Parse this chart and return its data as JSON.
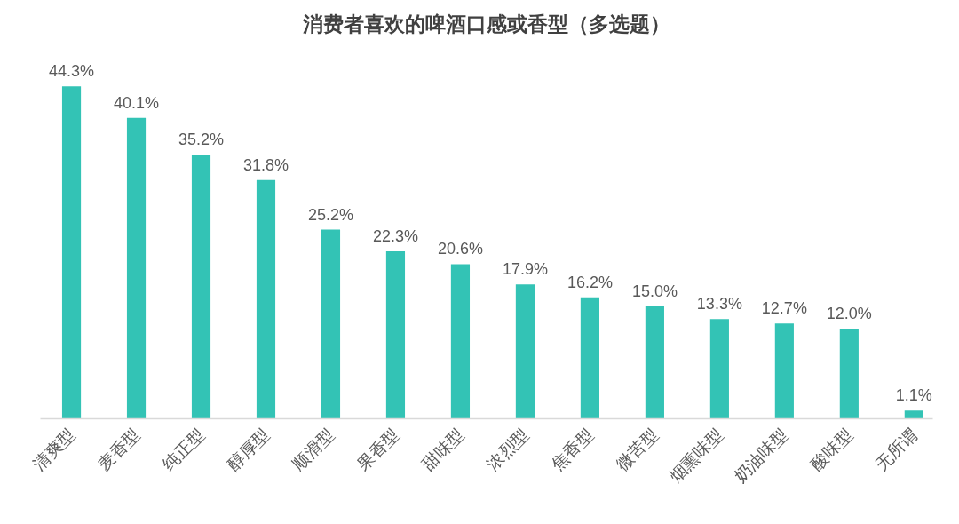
{
  "chart_data": {
    "type": "bar",
    "title": "消费者喜欢的啤酒口感或香型（多选题）",
    "categories": [
      "清爽型",
      "麦香型",
      "纯正型",
      "醇厚型",
      "顺滑型",
      "果香型",
      "甜味型",
      "浓烈型",
      "焦香型",
      "微苦型",
      "烟熏味型",
      "奶油味型",
      "酸味型",
      "无所谓"
    ],
    "values": [
      44.3,
      40.1,
      35.2,
      31.8,
      25.2,
      22.3,
      20.6,
      17.9,
      16.2,
      15.0,
      13.3,
      12.7,
      12.0,
      1.1
    ],
    "value_labels": [
      "44.3%",
      "40.1%",
      "35.2%",
      "31.8%",
      "25.2%",
      "22.3%",
      "20.6%",
      "17.9%",
      "16.2%",
      "15.0%",
      "13.3%",
      "12.7%",
      "12.0%",
      "1.1%"
    ],
    "color": "#33c3b5"
  }
}
